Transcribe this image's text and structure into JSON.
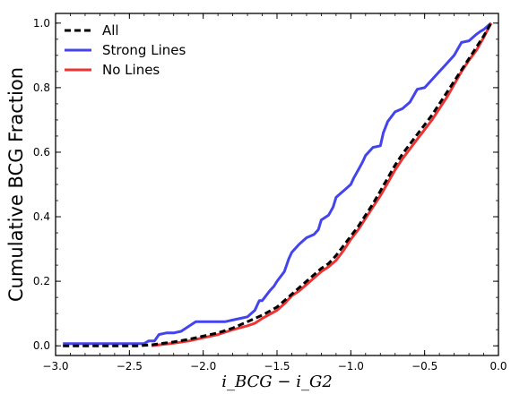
{
  "chart_data": {
    "type": "line",
    "title": "",
    "xlabel": "i_BCG − i_G2",
    "ylabel": "Cumulative BCG Fraction",
    "xlim": [
      -3.0,
      0.0
    ],
    "ylim": [
      -0.03,
      1.03
    ],
    "xticks": [
      -3.0,
      -2.5,
      -2.0,
      -1.5,
      -1.0,
      -0.5,
      0.0
    ],
    "xtick_labels": [
      "−3.0",
      "−2.5",
      "−2.0",
      "−1.5",
      "−1.0",
      "−0.5",
      "0.0"
    ],
    "yticks": [
      0.0,
      0.2,
      0.4,
      0.6,
      0.8,
      1.0
    ],
    "ytick_labels": [
      "0.0",
      "0.2",
      "0.4",
      "0.6",
      "0.8",
      "1.0"
    ],
    "grid": false,
    "legend_position": "top-left",
    "series": [
      {
        "name": "All",
        "color": "#000000",
        "style": "dashed",
        "x": [
          -2.95,
          -2.45,
          -2.35,
          -2.3,
          -2.2,
          -2.1,
          -2.0,
          -1.9,
          -1.8,
          -1.7,
          -1.6,
          -1.5,
          -1.45,
          -1.4,
          -1.35,
          -1.3,
          -1.25,
          -1.2,
          -1.15,
          -1.1,
          -1.05,
          -1.0,
          -0.95,
          -0.9,
          -0.85,
          -0.8,
          -0.75,
          -0.7,
          -0.65,
          -0.6,
          -0.55,
          -0.5,
          -0.45,
          -0.4,
          -0.35,
          -0.3,
          -0.25,
          -0.2,
          -0.15,
          -0.1,
          -0.05
        ],
        "y": [
          0.0,
          0.0,
          0.003,
          0.006,
          0.012,
          0.02,
          0.03,
          0.04,
          0.055,
          0.075,
          0.095,
          0.12,
          0.14,
          0.16,
          0.18,
          0.2,
          0.22,
          0.24,
          0.255,
          0.28,
          0.31,
          0.34,
          0.37,
          0.405,
          0.44,
          0.48,
          0.52,
          0.56,
          0.595,
          0.625,
          0.655,
          0.685,
          0.715,
          0.75,
          0.785,
          0.82,
          0.855,
          0.89,
          0.925,
          0.96,
          1.0
        ]
      },
      {
        "name": "Strong Lines",
        "color": "#4444ee",
        "style": "solid",
        "x": [
          -2.95,
          -2.4,
          -2.37,
          -2.33,
          -2.3,
          -2.25,
          -2.2,
          -2.15,
          -2.1,
          -2.05,
          -2.0,
          -1.95,
          -1.9,
          -1.85,
          -1.8,
          -1.75,
          -1.7,
          -1.65,
          -1.62,
          -1.6,
          -1.55,
          -1.52,
          -1.5,
          -1.45,
          -1.42,
          -1.4,
          -1.35,
          -1.3,
          -1.25,
          -1.22,
          -1.2,
          -1.15,
          -1.12,
          -1.1,
          -1.05,
          -1.0,
          -0.98,
          -0.95,
          -0.92,
          -0.9,
          -0.85,
          -0.8,
          -0.78,
          -0.75,
          -0.7,
          -0.65,
          -0.6,
          -0.55,
          -0.5,
          -0.45,
          -0.4,
          -0.35,
          -0.3,
          -0.25,
          -0.2,
          -0.15,
          -0.12,
          -0.1,
          -0.05
        ],
        "y": [
          0.007,
          0.007,
          0.015,
          0.015,
          0.035,
          0.04,
          0.04,
          0.045,
          0.06,
          0.075,
          0.075,
          0.075,
          0.075,
          0.075,
          0.08,
          0.085,
          0.09,
          0.11,
          0.14,
          0.14,
          0.17,
          0.185,
          0.2,
          0.23,
          0.27,
          0.29,
          0.315,
          0.335,
          0.345,
          0.36,
          0.39,
          0.405,
          0.43,
          0.46,
          0.48,
          0.5,
          0.52,
          0.545,
          0.57,
          0.59,
          0.615,
          0.62,
          0.66,
          0.695,
          0.725,
          0.735,
          0.755,
          0.795,
          0.8,
          0.825,
          0.85,
          0.875,
          0.9,
          0.94,
          0.945,
          0.965,
          0.975,
          0.98,
          1.0
        ]
      },
      {
        "name": "No Lines",
        "color": "#ee3333",
        "style": "solid",
        "x": [
          -2.35,
          -2.3,
          -2.2,
          -2.1,
          -2.0,
          -1.9,
          -1.8,
          -1.7,
          -1.65,
          -1.6,
          -1.5,
          -1.45,
          -1.4,
          -1.35,
          -1.3,
          -1.25,
          -1.2,
          -1.15,
          -1.1,
          -1.05,
          -1.0,
          -0.95,
          -0.9,
          -0.85,
          -0.8,
          -0.75,
          -0.7,
          -0.65,
          -0.6,
          -0.55,
          -0.5,
          -0.45,
          -0.4,
          -0.35,
          -0.3,
          -0.25,
          -0.2,
          -0.15,
          -0.1,
          -0.05
        ],
        "y": [
          0.0,
          0.003,
          0.008,
          0.015,
          0.025,
          0.035,
          0.05,
          0.062,
          0.07,
          0.085,
          0.11,
          0.13,
          0.155,
          0.17,
          0.19,
          0.21,
          0.23,
          0.245,
          0.265,
          0.295,
          0.33,
          0.36,
          0.395,
          0.43,
          0.465,
          0.505,
          0.545,
          0.58,
          0.61,
          0.64,
          0.67,
          0.7,
          0.735,
          0.77,
          0.81,
          0.85,
          0.885,
          0.915,
          0.955,
          1.0
        ]
      }
    ]
  }
}
